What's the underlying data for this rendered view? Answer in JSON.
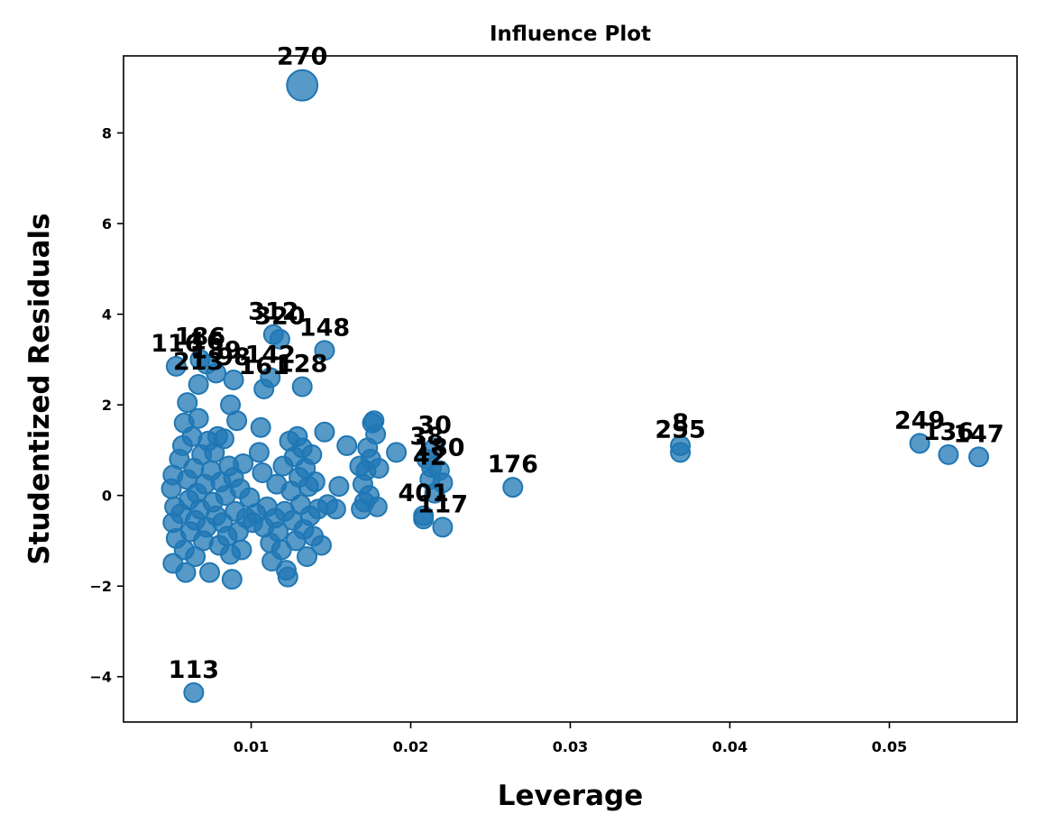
{
  "chart_data": {
    "type": "scatter",
    "title": "Influence Plot",
    "xlabel": "Leverage",
    "ylabel": "Studentized Residuals",
    "xlim": [
      0.002,
      0.058
    ],
    "ylim": [
      -5.0,
      9.7
    ],
    "xticks": [
      0.01,
      0.02,
      0.03,
      0.04,
      0.05
    ],
    "xtick_labels": [
      "0.01",
      "0.02",
      "0.03",
      "0.04",
      "0.05"
    ],
    "yticks": [
      -4,
      -2,
      0,
      2,
      4,
      6,
      8
    ],
    "ytick_labels": [
      "−4",
      "−2",
      "0",
      "2",
      "4",
      "6",
      "8"
    ],
    "grid": false,
    "color": "#1f77b4",
    "points": [
      {
        "x": 0.0132,
        "y": 9.05,
        "label": "270",
        "size": 2.6
      },
      {
        "x": 0.0064,
        "y": -4.35,
        "label": "113",
        "size": 1.0
      },
      {
        "x": 0.0146,
        "y": 3.2,
        "label": "148",
        "size": 1.0
      },
      {
        "x": 0.0114,
        "y": 3.55,
        "label": "312",
        "size": 1.0
      },
      {
        "x": 0.0118,
        "y": 3.45,
        "label": "320",
        "size": 1.0
      },
      {
        "x": 0.0053,
        "y": 2.85,
        "label": "116",
        "size": 1.0
      },
      {
        "x": 0.0068,
        "y": 3.0,
        "label": "186",
        "size": 1.0
      },
      {
        "x": 0.0072,
        "y": 2.9,
        "label": "16",
        "size": 1.0
      },
      {
        "x": 0.0078,
        "y": 2.7,
        "label": "189",
        "size": 1.0
      },
      {
        "x": 0.0089,
        "y": 2.55,
        "label": "98",
        "size": 1.0
      },
      {
        "x": 0.0112,
        "y": 2.6,
        "label": "142",
        "size": 1.0
      },
      {
        "x": 0.0132,
        "y": 2.4,
        "label": "128",
        "size": 1.0
      },
      {
        "x": 0.0067,
        "y": 2.45,
        "label": "213",
        "size": 1.0
      },
      {
        "x": 0.0108,
        "y": 2.35,
        "label": "161",
        "size": 1.0
      },
      {
        "x": 0.0369,
        "y": 1.1,
        "label": "8",
        "size": 1.0
      },
      {
        "x": 0.0369,
        "y": 0.95,
        "label": "255",
        "size": 1.0
      },
      {
        "x": 0.0519,
        "y": 1.15,
        "label": "249",
        "size": 1.0
      },
      {
        "x": 0.0537,
        "y": 0.9,
        "label": "136",
        "size": 1.0
      },
      {
        "x": 0.0556,
        "y": 0.85,
        "label": "147",
        "size": 1.0
      },
      {
        "x": 0.0215,
        "y": 1.05,
        "label": "30",
        "size": 1.0
      },
      {
        "x": 0.021,
        "y": 0.8,
        "label": "38",
        "size": 1.0
      },
      {
        "x": 0.0218,
        "y": 0.55,
        "label": "180",
        "size": 1.0
      },
      {
        "x": 0.0212,
        "y": 0.35,
        "label": "42",
        "size": 1.0
      },
      {
        "x": 0.0264,
        "y": 0.18,
        "label": "176",
        "size": 1.0
      },
      {
        "x": 0.0208,
        "y": -0.45,
        "label": "401",
        "size": 1.0
      },
      {
        "x": 0.022,
        "y": -0.7,
        "label": "117",
        "size": 1.0
      },
      {
        "x": 0.0215,
        "y": 0.05,
        "label": "",
        "size": 1.0
      },
      {
        "x": 0.0208,
        "y": -0.52,
        "label": "",
        "size": 1.0
      },
      {
        "x": 0.0213,
        "y": 0.62,
        "label": "",
        "size": 1.0
      },
      {
        "x": 0.022,
        "y": 0.28,
        "label": "",
        "size": 1.0
      },
      {
        "x": 0.0051,
        "y": 0.45,
        "label": "",
        "size": 1.0
      },
      {
        "x": 0.005,
        "y": 0.15,
        "label": "",
        "size": 1.0
      },
      {
        "x": 0.0052,
        "y": -0.25,
        "label": "",
        "size": 1.0
      },
      {
        "x": 0.0051,
        "y": -0.6,
        "label": "",
        "size": 1.0
      },
      {
        "x": 0.0053,
        "y": -0.95,
        "label": "",
        "size": 1.0
      },
      {
        "x": 0.0051,
        "y": -1.5,
        "label": "",
        "size": 1.0
      },
      {
        "x": 0.0055,
        "y": 0.8,
        "label": "",
        "size": 1.0
      },
      {
        "x": 0.0057,
        "y": 1.1,
        "label": "",
        "size": 1.0
      },
      {
        "x": 0.0058,
        "y": 1.6,
        "label": "",
        "size": 1.0
      },
      {
        "x": 0.0056,
        "y": -0.4,
        "label": "",
        "size": 1.0
      },
      {
        "x": 0.0058,
        "y": -1.2,
        "label": "",
        "size": 1.0
      },
      {
        "x": 0.0059,
        "y": -1.7,
        "label": "",
        "size": 1.0
      },
      {
        "x": 0.006,
        "y": 2.05,
        "label": "",
        "size": 1.0
      },
      {
        "x": 0.006,
        "y": 0.35,
        "label": "",
        "size": 1.0
      },
      {
        "x": 0.0061,
        "y": -0.1,
        "label": "",
        "size": 1.0
      },
      {
        "x": 0.0062,
        "y": -0.8,
        "label": "",
        "size": 1.0
      },
      {
        "x": 0.0063,
        "y": 1.3,
        "label": "",
        "size": 1.0
      },
      {
        "x": 0.0064,
        "y": 0.6,
        "label": "",
        "size": 1.0
      },
      {
        "x": 0.0065,
        "y": -0.55,
        "label": "",
        "size": 1.0
      },
      {
        "x": 0.0065,
        "y": -1.35,
        "label": "",
        "size": 1.0
      },
      {
        "x": 0.0066,
        "y": 0.05,
        "label": "",
        "size": 1.0
      },
      {
        "x": 0.0067,
        "y": 1.7,
        "label": "",
        "size": 1.0
      },
      {
        "x": 0.0068,
        "y": -0.3,
        "label": "",
        "size": 1.0
      },
      {
        "x": 0.0069,
        "y": 0.9,
        "label": "",
        "size": 1.0
      },
      {
        "x": 0.007,
        "y": -1.0,
        "label": "",
        "size": 1.0
      },
      {
        "x": 0.0071,
        "y": 0.25,
        "label": "",
        "size": 1.0
      },
      {
        "x": 0.0072,
        "y": -0.7,
        "label": "",
        "size": 1.0
      },
      {
        "x": 0.0073,
        "y": 1.2,
        "label": "",
        "size": 1.0
      },
      {
        "x": 0.0074,
        "y": -1.7,
        "label": "",
        "size": 1.0
      },
      {
        "x": 0.0075,
        "y": 0.55,
        "label": "",
        "size": 1.0
      },
      {
        "x": 0.0076,
        "y": -0.15,
        "label": "",
        "size": 1.0
      },
      {
        "x": 0.0077,
        "y": 0.95,
        "label": "",
        "size": 1.0
      },
      {
        "x": 0.0078,
        "y": -0.45,
        "label": "",
        "size": 1.0
      },
      {
        "x": 0.0079,
        "y": 1.3,
        "label": "",
        "size": 1.0
      },
      {
        "x": 0.008,
        "y": -1.1,
        "label": "",
        "size": 1.0
      },
      {
        "x": 0.0081,
        "y": 0.3,
        "label": "",
        "size": 1.0
      },
      {
        "x": 0.0082,
        "y": -0.6,
        "label": "",
        "size": 1.0
      },
      {
        "x": 0.0083,
        "y": 1.25,
        "label": "",
        "size": 1.0
      },
      {
        "x": 0.0084,
        "y": 0.0,
        "label": "",
        "size": 1.0
      },
      {
        "x": 0.0085,
        "y": -0.9,
        "label": "",
        "size": 1.0
      },
      {
        "x": 0.0086,
        "y": 0.65,
        "label": "",
        "size": 1.0
      },
      {
        "x": 0.0087,
        "y": -1.3,
        "label": "",
        "size": 1.0
      },
      {
        "x": 0.0087,
        "y": 2.0,
        "label": "",
        "size": 1.0
      },
      {
        "x": 0.0088,
        "y": -1.85,
        "label": "",
        "size": 1.0
      },
      {
        "x": 0.0089,
        "y": 0.4,
        "label": "",
        "size": 1.0
      },
      {
        "x": 0.009,
        "y": -0.35,
        "label": "",
        "size": 1.0
      },
      {
        "x": 0.0091,
        "y": 1.65,
        "label": "",
        "size": 1.0
      },
      {
        "x": 0.0092,
        "y": -0.8,
        "label": "",
        "size": 1.0
      },
      {
        "x": 0.0093,
        "y": 0.15,
        "label": "",
        "size": 1.0
      },
      {
        "x": 0.0094,
        "y": -1.2,
        "label": "",
        "size": 1.0
      },
      {
        "x": 0.0095,
        "y": 0.7,
        "label": "",
        "size": 1.0
      },
      {
        "x": 0.0097,
        "y": -0.5,
        "label": "",
        "size": 1.0
      },
      {
        "x": 0.0099,
        "y": -0.05,
        "label": "",
        "size": 1.0
      },
      {
        "x": 0.0101,
        "y": -0.6,
        "label": "",
        "size": 1.0
      },
      {
        "x": 0.0103,
        "y": -0.4,
        "label": "",
        "size": 1.0
      },
      {
        "x": 0.0105,
        "y": 0.95,
        "label": "",
        "size": 1.0
      },
      {
        "x": 0.0106,
        "y": 1.5,
        "label": "",
        "size": 1.0
      },
      {
        "x": 0.0107,
        "y": 0.5,
        "label": "",
        "size": 1.0
      },
      {
        "x": 0.0108,
        "y": -0.7,
        "label": "",
        "size": 1.0
      },
      {
        "x": 0.011,
        "y": -0.25,
        "label": "",
        "size": 1.0
      },
      {
        "x": 0.0112,
        "y": -1.05,
        "label": "",
        "size": 1.0
      },
      {
        "x": 0.0113,
        "y": -1.45,
        "label": "",
        "size": 1.0
      },
      {
        "x": 0.0115,
        "y": -0.5,
        "label": "",
        "size": 1.0
      },
      {
        "x": 0.0116,
        "y": 0.25,
        "label": "",
        "size": 1.0
      },
      {
        "x": 0.0117,
        "y": -0.8,
        "label": "",
        "size": 1.0
      },
      {
        "x": 0.0119,
        "y": -1.2,
        "label": "",
        "size": 1.0
      },
      {
        "x": 0.012,
        "y": 0.65,
        "label": "",
        "size": 1.0
      },
      {
        "x": 0.0121,
        "y": -0.35,
        "label": "",
        "size": 1.0
      },
      {
        "x": 0.0122,
        "y": -1.65,
        "label": "",
        "size": 1.0
      },
      {
        "x": 0.0123,
        "y": -1.8,
        "label": "",
        "size": 1.0
      },
      {
        "x": 0.0124,
        "y": 1.2,
        "label": "",
        "size": 1.0
      },
      {
        "x": 0.0125,
        "y": 0.1,
        "label": "",
        "size": 1.0
      },
      {
        "x": 0.0126,
        "y": -0.55,
        "label": "",
        "size": 1.0
      },
      {
        "x": 0.0127,
        "y": 0.85,
        "label": "",
        "size": 1.0
      },
      {
        "x": 0.0128,
        "y": -1.0,
        "label": "",
        "size": 1.0
      },
      {
        "x": 0.0129,
        "y": 1.3,
        "label": "",
        "size": 1.0
      },
      {
        "x": 0.013,
        "y": 0.4,
        "label": "",
        "size": 1.0
      },
      {
        "x": 0.0131,
        "y": -0.2,
        "label": "",
        "size": 1.0
      },
      {
        "x": 0.0132,
        "y": 1.05,
        "label": "",
        "size": 1.0
      },
      {
        "x": 0.0133,
        "y": -0.75,
        "label": "",
        "size": 1.0
      },
      {
        "x": 0.0134,
        "y": 0.6,
        "label": "",
        "size": 1.0
      },
      {
        "x": 0.0135,
        "y": -1.35,
        "label": "",
        "size": 1.0
      },
      {
        "x": 0.0136,
        "y": 0.2,
        "label": "",
        "size": 1.0
      },
      {
        "x": 0.0137,
        "y": -0.45,
        "label": "",
        "size": 1.0
      },
      {
        "x": 0.0138,
        "y": 0.9,
        "label": "",
        "size": 1.0
      },
      {
        "x": 0.0139,
        "y": -0.9,
        "label": "",
        "size": 1.0
      },
      {
        "x": 0.014,
        "y": 0.3,
        "label": "",
        "size": 1.0
      },
      {
        "x": 0.0142,
        "y": -0.3,
        "label": "",
        "size": 1.0
      },
      {
        "x": 0.0144,
        "y": -1.1,
        "label": "",
        "size": 1.0
      },
      {
        "x": 0.0146,
        "y": 1.4,
        "label": "",
        "size": 1.0
      },
      {
        "x": 0.0148,
        "y": -0.2,
        "label": "",
        "size": 1.0
      },
      {
        "x": 0.0153,
        "y": -0.3,
        "label": "",
        "size": 1.0
      },
      {
        "x": 0.0155,
        "y": 0.2,
        "label": "",
        "size": 1.0
      },
      {
        "x": 0.016,
        "y": 1.1,
        "label": "",
        "size": 1.0
      },
      {
        "x": 0.0168,
        "y": 0.65,
        "label": "",
        "size": 1.0
      },
      {
        "x": 0.0169,
        "y": -0.3,
        "label": "",
        "size": 1.0
      },
      {
        "x": 0.017,
        "y": 0.25,
        "label": "",
        "size": 1.0
      },
      {
        "x": 0.0171,
        "y": -0.15,
        "label": "",
        "size": 1.0
      },
      {
        "x": 0.0172,
        "y": 0.55,
        "label": "",
        "size": 1.0
      },
      {
        "x": 0.0173,
        "y": 1.05,
        "label": "",
        "size": 1.0
      },
      {
        "x": 0.0174,
        "y": 0.0,
        "label": "",
        "size": 1.0
      },
      {
        "x": 0.0175,
        "y": 0.8,
        "label": "",
        "size": 1.0
      },
      {
        "x": 0.0176,
        "y": 1.6,
        "label": "",
        "size": 1.0
      },
      {
        "x": 0.0177,
        "y": 1.65,
        "label": "",
        "size": 1.0
      },
      {
        "x": 0.0178,
        "y": 1.35,
        "label": "",
        "size": 1.0
      },
      {
        "x": 0.0179,
        "y": -0.25,
        "label": "",
        "size": 1.0
      },
      {
        "x": 0.018,
        "y": 0.6,
        "label": "",
        "size": 1.0
      },
      {
        "x": 0.0191,
        "y": 0.95,
        "label": "",
        "size": 1.0
      }
    ]
  }
}
